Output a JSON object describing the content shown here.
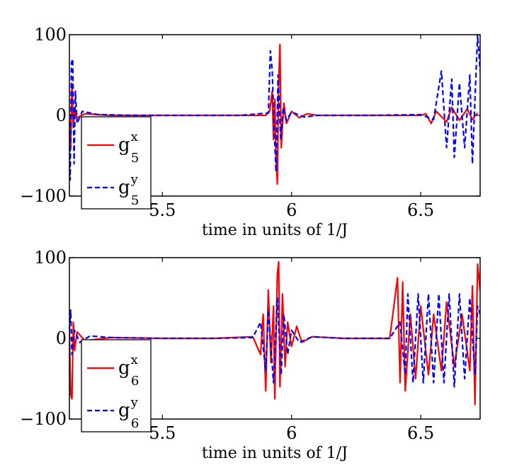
{
  "chart_data": [
    {
      "type": "line",
      "xlabel": "time in units of 1/J",
      "ylabel": "",
      "xlim": [
        5.14,
        6.73
      ],
      "ylim": [
        -100,
        100
      ],
      "xticks": [
        5.5,
        6,
        6.5
      ],
      "xtick_labels": [
        "5.5",
        "6",
        "6.5"
      ],
      "yticks": [
        100,
        0,
        -100
      ],
      "ytick_labels": [
        "100",
        "0",
        "−100"
      ],
      "grid": false,
      "legend_position": "bottom-left",
      "series": [
        {
          "name": "g_5^x",
          "legend_base": "g",
          "legend_sup": "x",
          "legend_sub": "5",
          "color": "#ff0000",
          "dash": "solid",
          "points": [
            [
              5.14,
              -5
            ],
            [
              5.145,
              -40
            ],
            [
              5.15,
              40
            ],
            [
              5.155,
              -15
            ],
            [
              5.16,
              8
            ],
            [
              5.17,
              -3
            ],
            [
              5.2,
              2
            ],
            [
              5.3,
              0
            ],
            [
              5.5,
              0
            ],
            [
              5.7,
              0
            ],
            [
              5.9,
              0
            ],
            [
              5.915,
              5
            ],
            [
              5.925,
              30
            ],
            [
              5.93,
              -30
            ],
            [
              5.935,
              20
            ],
            [
              5.94,
              -50
            ],
            [
              5.945,
              -85
            ],
            [
              5.95,
              40
            ],
            [
              5.955,
              88
            ],
            [
              5.96,
              -40
            ],
            [
              5.97,
              15
            ],
            [
              5.98,
              -10
            ],
            [
              6.0,
              5
            ],
            [
              6.03,
              -3
            ],
            [
              6.06,
              2
            ],
            [
              6.1,
              0
            ],
            [
              6.3,
              0
            ],
            [
              6.5,
              0
            ],
            [
              6.52,
              2
            ],
            [
              6.54,
              -10
            ],
            [
              6.56,
              5
            ],
            [
              6.6,
              -8
            ],
            [
              6.62,
              10
            ],
            [
              6.65,
              -6
            ],
            [
              6.68,
              8
            ],
            [
              6.7,
              -5
            ],
            [
              6.72,
              3
            ]
          ]
        },
        {
          "name": "g_5^y",
          "legend_base": "g",
          "legend_sup": "y",
          "legend_sub": "5",
          "color": "#0000ff",
          "dash": "dashed",
          "points": [
            [
              5.14,
              -20
            ],
            [
              5.143,
              -80
            ],
            [
              5.148,
              65
            ],
            [
              5.153,
              70
            ],
            [
              5.158,
              -60
            ],
            [
              5.163,
              30
            ],
            [
              5.17,
              -10
            ],
            [
              5.19,
              5
            ],
            [
              5.25,
              1
            ],
            [
              5.4,
              0
            ],
            [
              5.6,
              0
            ],
            [
              5.8,
              0
            ],
            [
              5.91,
              3
            ],
            [
              5.918,
              80
            ],
            [
              5.925,
              55
            ],
            [
              5.933,
              -20
            ],
            [
              5.94,
              -70
            ],
            [
              5.948,
              50
            ],
            [
              5.958,
              -30
            ],
            [
              5.968,
              10
            ],
            [
              5.98,
              -6
            ],
            [
              6.0,
              4
            ],
            [
              6.05,
              -2
            ],
            [
              6.1,
              0
            ],
            [
              6.3,
              0
            ],
            [
              6.5,
              1
            ],
            [
              6.55,
              -5
            ],
            [
              6.58,
              55
            ],
            [
              6.6,
              -40
            ],
            [
              6.62,
              45
            ],
            [
              6.63,
              -52
            ],
            [
              6.65,
              40
            ],
            [
              6.67,
              -40
            ],
            [
              6.69,
              50
            ],
            [
              6.7,
              -60
            ],
            [
              6.71,
              20
            ],
            [
              6.72,
              100
            ],
            [
              6.73,
              55
            ]
          ]
        }
      ]
    },
    {
      "type": "line",
      "xlabel": "time in units of 1/J",
      "ylabel": "",
      "xlim": [
        5.14,
        6.73
      ],
      "ylim": [
        -100,
        100
      ],
      "xticks": [
        5.5,
        6,
        6.5
      ],
      "xtick_labels": [
        "5.5",
        "6",
        "6.5"
      ],
      "yticks": [
        100,
        0,
        -100
      ],
      "ytick_labels": [
        "100",
        "0",
        "−100"
      ],
      "grid": false,
      "legend_position": "bottom-left",
      "series": [
        {
          "name": "g_6^x",
          "legend_base": "g",
          "legend_sup": "x",
          "legend_sub": "6",
          "color": "#ff0000",
          "dash": "solid",
          "points": [
            [
              5.14,
              10
            ],
            [
              5.145,
              -70
            ],
            [
              5.15,
              -75
            ],
            [
              5.155,
              20
            ],
            [
              5.16,
              -15
            ],
            [
              5.17,
              8
            ],
            [
              5.2,
              -3
            ],
            [
              5.3,
              1
            ],
            [
              5.5,
              0
            ],
            [
              5.7,
              0
            ],
            [
              5.85,
              2
            ],
            [
              5.88,
              -20
            ],
            [
              5.89,
              30
            ],
            [
              5.9,
              -65
            ],
            [
              5.91,
              60
            ],
            [
              5.92,
              -30
            ],
            [
              5.93,
              40
            ],
            [
              5.935,
              -75
            ],
            [
              5.945,
              80
            ],
            [
              5.95,
              95
            ],
            [
              5.955,
              -60
            ],
            [
              5.965,
              55
            ],
            [
              5.975,
              -35
            ],
            [
              5.985,
              20
            ],
            [
              6.0,
              -10
            ],
            [
              6.02,
              15
            ],
            [
              6.04,
              -5
            ],
            [
              6.08,
              2
            ],
            [
              6.2,
              0
            ],
            [
              6.38,
              0
            ],
            [
              6.41,
              75
            ],
            [
              6.42,
              -55
            ],
            [
              6.43,
              70
            ],
            [
              6.44,
              -65
            ],
            [
              6.46,
              30
            ],
            [
              6.48,
              -50
            ],
            [
              6.5,
              40
            ],
            [
              6.53,
              -45
            ],
            [
              6.55,
              30
            ],
            [
              6.58,
              -40
            ],
            [
              6.6,
              45
            ],
            [
              6.63,
              -35
            ],
            [
              6.66,
              30
            ],
            [
              6.69,
              -40
            ],
            [
              6.7,
              65
            ],
            [
              6.71,
              -82
            ],
            [
              6.72,
              92
            ],
            [
              6.73,
              60
            ]
          ]
        },
        {
          "name": "g_6^y",
          "legend_base": "g",
          "legend_sup": "y",
          "legend_sub": "6",
          "color": "#0000ff",
          "dash": "dashed",
          "points": [
            [
              5.14,
              10
            ],
            [
              5.145,
              35
            ],
            [
              5.15,
              -20
            ],
            [
              5.16,
              10
            ],
            [
              5.18,
              -5
            ],
            [
              5.22,
              3
            ],
            [
              5.3,
              1
            ],
            [
              5.5,
              0
            ],
            [
              5.7,
              0
            ],
            [
              5.85,
              1
            ],
            [
              5.88,
              20
            ],
            [
              5.9,
              -40
            ],
            [
              5.91,
              35
            ],
            [
              5.93,
              -55
            ],
            [
              5.945,
              50
            ],
            [
              5.96,
              -45
            ],
            [
              5.97,
              30
            ],
            [
              5.985,
              -20
            ],
            [
              6.0,
              10
            ],
            [
              6.03,
              -5
            ],
            [
              6.08,
              2
            ],
            [
              6.2,
              0
            ],
            [
              6.38,
              0
            ],
            [
              6.42,
              20
            ],
            [
              6.44,
              -45
            ],
            [
              6.45,
              55
            ],
            [
              6.47,
              -55
            ],
            [
              6.49,
              55
            ],
            [
              6.51,
              -55
            ],
            [
              6.53,
              55
            ],
            [
              6.55,
              -55
            ],
            [
              6.57,
              55
            ],
            [
              6.59,
              -55
            ],
            [
              6.61,
              55
            ],
            [
              6.63,
              -60
            ],
            [
              6.65,
              55
            ],
            [
              6.67,
              -50
            ],
            [
              6.69,
              50
            ],
            [
              6.71,
              -45
            ],
            [
              6.72,
              40
            ],
            [
              6.73,
              30
            ]
          ]
        }
      ]
    }
  ]
}
